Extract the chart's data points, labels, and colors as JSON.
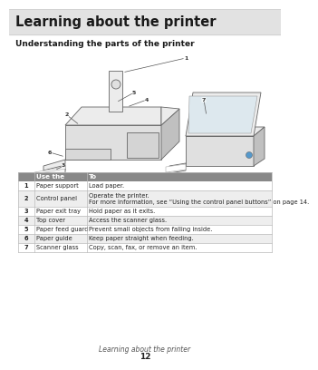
{
  "page_title": "Learning about the printer",
  "section_title": "Understanding the parts of the printer",
  "title_bg_top": "#e8e8e8",
  "title_bg_bot": "#f5f5f5",
  "title_text_color": "#1a1a1a",
  "table_header_bg": "#888888",
  "table_header_text_color": "#ffffff",
  "table_rows": [
    [
      "1",
      "Paper support",
      "Load paper."
    ],
    [
      "2",
      "Control panel",
      "Operate the printer.\nFor more information, see “Using the control panel buttons” on page 14."
    ],
    [
      "3",
      "Paper exit tray",
      "Hold paper as it exits."
    ],
    [
      "4",
      "Top cover",
      "Access the scanner glass."
    ],
    [
      "5",
      "Paper feed guard",
      "Prevent small objects from falling inside."
    ],
    [
      "6",
      "Paper guide",
      "Keep paper straight when feeding."
    ],
    [
      "7",
      "Scanner glass",
      "Copy, scan, fax, or remove an item."
    ]
  ],
  "table_row_alt_bg": "#eeeeee",
  "table_row_bg": "#ffffff",
  "table_border_color": "#bbbbbb",
  "footer_text": "Learning about the printer",
  "footer_page": "12",
  "bg_color": "#ffffff",
  "table_font_size": 4.8,
  "header_font_size": 5.2
}
